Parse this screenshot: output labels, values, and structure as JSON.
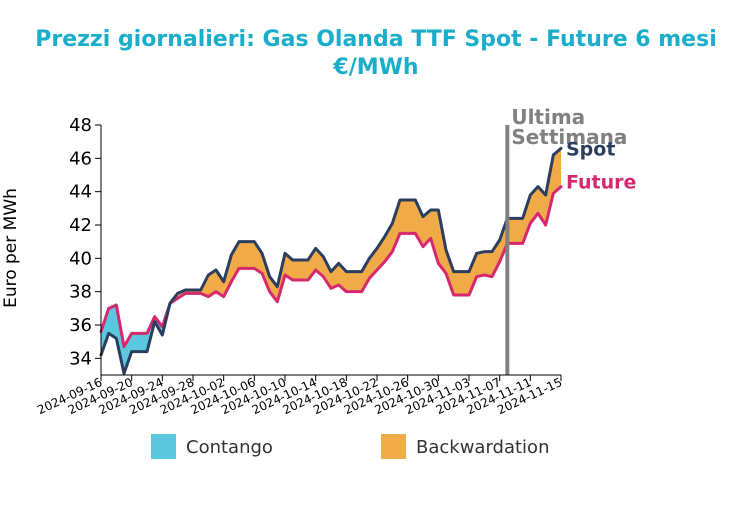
{
  "chart_data": {
    "type": "area",
    "title": "Prezzi giornalieri: Gas Olanda TTF Spot - Future 6 mesi",
    "subtitle": "€/MWh",
    "ylabel": "Euro per MWh",
    "xlabel": "",
    "ylim": [
      33,
      48
    ],
    "yticks": [
      34,
      36,
      38,
      40,
      42,
      44,
      46,
      48
    ],
    "xlim": [
      "2024-09-16",
      "2024-11-15"
    ],
    "xticks": [
      "2024-09-16",
      "2024-09-20",
      "2024-09-24",
      "2024-09-28",
      "2024-10-02",
      "2024-10-06",
      "2024-10-10",
      "2024-10-14",
      "2024-10-18",
      "2024-10-22",
      "2024-10-26",
      "2024-10-30",
      "2024-11-03",
      "2024-11-07",
      "2024-11-11",
      "2024-11-15"
    ],
    "x": [
      "2024-09-16",
      "2024-09-17",
      "2024-09-18",
      "2024-09-19",
      "2024-09-20",
      "2024-09-21",
      "2024-09-22",
      "2024-09-23",
      "2024-09-24",
      "2024-09-25",
      "2024-09-26",
      "2024-09-27",
      "2024-09-28",
      "2024-09-29",
      "2024-09-30",
      "2024-10-01",
      "2024-10-02",
      "2024-10-03",
      "2024-10-04",
      "2024-10-05",
      "2024-10-06",
      "2024-10-07",
      "2024-10-08",
      "2024-10-09",
      "2024-10-10",
      "2024-10-11",
      "2024-10-12",
      "2024-10-13",
      "2024-10-14",
      "2024-10-15",
      "2024-10-16",
      "2024-10-17",
      "2024-10-18",
      "2024-10-19",
      "2024-10-20",
      "2024-10-21",
      "2024-10-22",
      "2024-10-23",
      "2024-10-24",
      "2024-10-25",
      "2024-10-26",
      "2024-10-27",
      "2024-10-28",
      "2024-10-29",
      "2024-10-30",
      "2024-10-31",
      "2024-11-01",
      "2024-11-02",
      "2024-11-03",
      "2024-11-04",
      "2024-11-05",
      "2024-11-06",
      "2024-11-07",
      "2024-11-08",
      "2024-11-09",
      "2024-11-10",
      "2024-11-11",
      "2024-11-12",
      "2024-11-13",
      "2024-11-14",
      "2024-11-15"
    ],
    "series": [
      {
        "name": "Spot",
        "color": "#2c3e5e",
        "values": [
          34.2,
          35.5,
          35.2,
          33.1,
          34.4,
          34.4,
          34.4,
          36.2,
          35.4,
          37.3,
          37.9,
          38.1,
          38.1,
          38.1,
          39.0,
          39.3,
          38.6,
          40.2,
          41.0,
          41.0,
          41.0,
          40.3,
          38.9,
          38.3,
          40.3,
          39.9,
          39.9,
          39.9,
          40.6,
          40.1,
          39.2,
          39.7,
          39.2,
          39.2,
          39.2,
          40.0,
          40.6,
          41.3,
          42.1,
          43.5,
          43.5,
          43.5,
          42.5,
          42.9,
          42.9,
          40.5,
          39.2,
          39.2,
          39.2,
          40.3,
          40.4,
          40.4,
          41.1,
          42.4,
          42.4,
          42.4,
          43.8,
          44.3,
          43.8,
          46.2,
          46.6
        ]
      },
      {
        "name": "Future",
        "color": "#d6286f",
        "values": [
          35.6,
          37.0,
          37.2,
          34.7,
          35.5,
          35.5,
          35.5,
          36.5,
          35.9,
          37.3,
          37.6,
          37.9,
          37.9,
          37.9,
          37.7,
          38.0,
          37.7,
          38.6,
          39.4,
          39.4,
          39.4,
          39.1,
          38.0,
          37.4,
          39.0,
          38.7,
          38.7,
          38.7,
          39.3,
          38.9,
          38.2,
          38.4,
          38.0,
          38.0,
          38.0,
          38.8,
          39.3,
          39.8,
          40.4,
          41.5,
          41.5,
          41.5,
          40.7,
          41.2,
          39.7,
          39.1,
          37.8,
          37.8,
          37.8,
          38.9,
          39.0,
          38.9,
          39.8,
          40.9,
          40.9,
          40.9,
          42.1,
          42.7,
          42.0,
          43.9,
          44.3
        ]
      }
    ],
    "fill_between": [
      {
        "name": "Contango",
        "color": "#5bc8e0",
        "condition": "Future > Spot"
      },
      {
        "name": "Backwardation",
        "color": "#f0aa48",
        "condition": "Spot >= Future"
      }
    ],
    "vline": {
      "x": "2024-11-08",
      "label_line1": "Ultima",
      "label_line2": "Settimana",
      "color": "#808080"
    },
    "legend": {
      "placement": "bottom",
      "entries": [
        "Contango",
        "Backwardation"
      ]
    },
    "grid": false
  }
}
